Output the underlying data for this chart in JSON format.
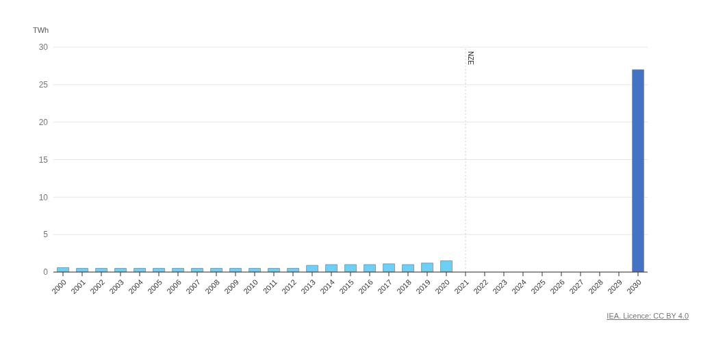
{
  "chart_data": {
    "type": "bar",
    "ylabel": "TWh",
    "categories": [
      "2000",
      "2001",
      "2002",
      "2003",
      "2004",
      "2005",
      "2006",
      "2007",
      "2008",
      "2009",
      "2010",
      "2011",
      "2012",
      "2013",
      "2014",
      "2015",
      "2016",
      "2017",
      "2018",
      "2019",
      "2020",
      "2021",
      "2022",
      "2023",
      "2024",
      "2025",
      "2026",
      "2027",
      "2028",
      "2029",
      "2030"
    ],
    "values": [
      0.6,
      0.5,
      0.5,
      0.5,
      0.5,
      0.5,
      0.5,
      0.5,
      0.5,
      0.5,
      0.5,
      0.5,
      0.5,
      0.9,
      1.0,
      1.0,
      1.0,
      1.1,
      1.0,
      1.2,
      1.5,
      null,
      null,
      null,
      null,
      null,
      null,
      null,
      null,
      null,
      27
    ],
    "colors": [
      "#6ecff6",
      "#6ecff6",
      "#6ecff6",
      "#6ecff6",
      "#6ecff6",
      "#6ecff6",
      "#6ecff6",
      "#6ecff6",
      "#6ecff6",
      "#6ecff6",
      "#6ecff6",
      "#6ecff6",
      "#6ecff6",
      "#6ecff6",
      "#6ecff6",
      "#6ecff6",
      "#6ecff6",
      "#6ecff6",
      "#6ecff6",
      "#6ecff6",
      "#6ecff6",
      "#6ecff6",
      "#6ecff6",
      "#6ecff6",
      "#6ecff6",
      "#6ecff6",
      "#6ecff6",
      "#6ecff6",
      "#6ecff6",
      "#6ecff6",
      "#4472c4"
    ],
    "ylim": [
      0,
      30
    ],
    "yticks": [
      0,
      5,
      10,
      15,
      20,
      25,
      30
    ],
    "grid": "y",
    "ref_lines": [
      {
        "axis": "x",
        "value": "2021",
        "label": "NZE",
        "line_style": "dotted",
        "color": "#cccccc"
      }
    ],
    "annotations": [
      "IEA. Licence: CC BY 4.0"
    ]
  }
}
